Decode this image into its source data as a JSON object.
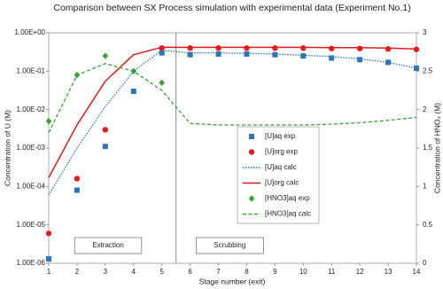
{
  "chart_data": {
    "type": "line",
    "title": "Comparison between SX Process simulation with experimental data (Experiment No.1)",
    "xlabel": "Stage number (exit)",
    "ylabel": "Concentration of U (M)",
    "y2label": "Concentration of HNO₃ (M)",
    "x": [
      1,
      2,
      3,
      4,
      5,
      6,
      7,
      8,
      9,
      10,
      11,
      12,
      13,
      14
    ],
    "xlim": [
      1,
      14
    ],
    "xticks": [
      1,
      2,
      3,
      4,
      5,
      6,
      7,
      8,
      9,
      10,
      11,
      12,
      13,
      14
    ],
    "ylim": [
      1e-06,
      1
    ],
    "yscale": "log",
    "yticks": [
      {
        "value": 1e-06,
        "label": "1.00E-06"
      },
      {
        "value": 1e-05,
        "label": "1.00E-05"
      },
      {
        "value": 0.0001,
        "label": "1.00E-04"
      },
      {
        "value": 0.001,
        "label": "1.00E-03"
      },
      {
        "value": 0.01,
        "label": "1.00E-02"
      },
      {
        "value": 0.1,
        "label": "1.00E-01"
      },
      {
        "value": 1,
        "label": "1.00E+00"
      }
    ],
    "y2lim": [
      0,
      3
    ],
    "y2ticks": [
      0,
      0.5,
      1,
      1.5,
      2,
      2.5,
      3
    ],
    "divider_x": 5.5,
    "annotations": [
      "Extraction",
      "Scrubbing"
    ],
    "legend": "center",
    "series": [
      {
        "name": "[U]aq exp",
        "color": "#2e75b6",
        "style": "square",
        "values": [
          1.3e-06,
          8e-05,
          0.0011,
          0.03,
          0.3,
          0.27,
          0.28,
          0.28,
          0.27,
          0.25,
          0.22,
          0.2,
          0.17,
          0.12
        ]
      },
      {
        "name": "[U]org exp",
        "color": "#e41a1c",
        "style": "circle",
        "values": [
          6e-06,
          0.00016,
          0.003,
          null,
          0.4,
          0.4,
          0.4,
          0.4,
          0.4,
          0.4,
          0.39,
          0.39,
          0.38,
          0.37
        ]
      },
      {
        "name": "[U]aq calc",
        "color": "#2e75b6",
        "style": "dotted",
        "values": [
          6e-05,
          0.001,
          0.012,
          0.1,
          0.35,
          0.3,
          0.3,
          0.29,
          0.28,
          0.26,
          0.24,
          0.21,
          0.17,
          0.12
        ]
      },
      {
        "name": "[U]org calc",
        "color": "#e41a1c",
        "style": "solid",
        "values": [
          0.00017,
          0.004,
          0.055,
          0.27,
          0.42,
          0.42,
          0.42,
          0.42,
          0.42,
          0.42,
          0.41,
          0.41,
          0.4,
          0.38
        ]
      },
      {
        "name": "[HNO3]aq exp",
        "color": "#3aa335",
        "style": "diamond",
        "axis": "y2",
        "values": [
          1.85,
          2.45,
          2.7,
          2.5,
          2.35,
          null,
          null,
          null,
          null,
          null,
          null,
          null,
          null,
          null
        ]
      },
      {
        "name": "[HNO3]aq calc",
        "color": "#3aa335",
        "style": "dashed",
        "axis": "y2",
        "values": [
          1.7,
          2.45,
          2.6,
          2.5,
          2.25,
          1.82,
          1.8,
          1.8,
          1.8,
          1.8,
          1.81,
          1.83,
          1.86,
          1.9
        ]
      }
    ]
  }
}
